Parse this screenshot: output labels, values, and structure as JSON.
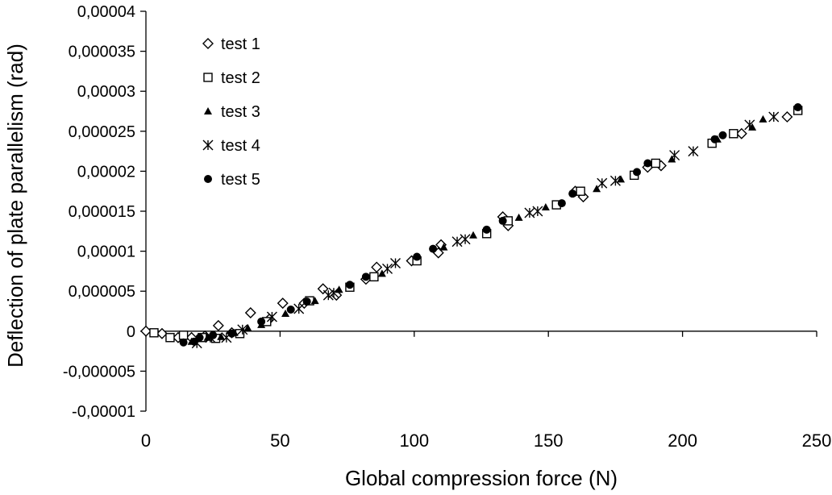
{
  "chart_data": {
    "type": "scatter",
    "title": "",
    "xlabel": "Global compression force (N)",
    "ylabel": "Deflection of plate parallelism (rad)",
    "xlim": [
      0,
      250
    ],
    "ylim": [
      -1e-05,
      4e-05
    ],
    "x_ticks": [
      0,
      50,
      100,
      150,
      200,
      250
    ],
    "x_tick_labels": [
      "0",
      "50",
      "100",
      "150",
      "200",
      "250"
    ],
    "y_ticks": [
      -1e-05,
      -5e-06,
      0,
      5e-06,
      1e-05,
      1.5e-05,
      2e-05,
      2.5e-05,
      3e-05,
      3.5e-05,
      4e-05
    ],
    "y_tick_labels": [
      "-0,00001",
      "-0,000005",
      "0",
      "0,000005",
      "0,00001",
      "0,000015",
      "0,00002",
      "0,000025",
      "0,00003",
      "0,000035",
      "0,00004"
    ],
    "grid": false,
    "legend": "top-left",
    "series": [
      {
        "name": "test 1",
        "marker": "diamond-open",
        "points": [
          [
            0,
            0.0
          ],
          [
            6,
            -3e-07
          ],
          [
            12,
            -8e-07
          ],
          [
            17,
            -8e-07
          ],
          [
            22,
            -6e-07
          ],
          [
            27,
            7e-07
          ],
          [
            32,
            -2e-07
          ],
          [
            39,
            2.3e-06
          ],
          [
            46,
            1.5e-06
          ],
          [
            51,
            3.5e-06
          ],
          [
            59,
            3.5e-06
          ],
          [
            66,
            5.3e-06
          ],
          [
            71,
            4.5e-06
          ],
          [
            82,
            6.5e-06
          ],
          [
            86,
            8e-06
          ],
          [
            99,
            8.8e-06
          ],
          [
            109,
            9.8e-06
          ],
          [
            110,
            1.08e-05
          ],
          [
            133,
            1.43e-05
          ],
          [
            135,
            1.32e-05
          ],
          [
            160,
            1.75e-05
          ],
          [
            163,
            1.68e-05
          ],
          [
            187,
            2.05e-05
          ],
          [
            192,
            2.07e-05
          ],
          [
            222,
            2.47e-05
          ],
          [
            239,
            2.68e-05
          ]
        ]
      },
      {
        "name": "test 2",
        "marker": "square-open",
        "points": [
          [
            3,
            -2e-07
          ],
          [
            9,
            -8e-07
          ],
          [
            14,
            -5e-07
          ],
          [
            21,
            -8e-07
          ],
          [
            26,
            -9e-07
          ],
          [
            35,
            -3e-07
          ],
          [
            45,
            1.2e-06
          ],
          [
            61,
            3.8e-06
          ],
          [
            76,
            5.5e-06
          ],
          [
            85,
            6.8e-06
          ],
          [
            101,
            8.8e-06
          ],
          [
            127,
            1.22e-05
          ],
          [
            135,
            1.38e-05
          ],
          [
            153,
            1.58e-05
          ],
          [
            162,
            1.75e-05
          ],
          [
            182,
            1.95e-05
          ],
          [
            190,
            2.1e-05
          ],
          [
            211,
            2.35e-05
          ],
          [
            219,
            2.47e-05
          ],
          [
            243,
            2.76e-05
          ]
        ]
      },
      {
        "name": "test 3",
        "marker": "triangle-filled",
        "points": [
          [
            17,
            -1.3e-06
          ],
          [
            23,
            -8e-07
          ],
          [
            28,
            -7e-07
          ],
          [
            33,
            -2e-07
          ],
          [
            38,
            4e-07
          ],
          [
            43,
            8e-07
          ],
          [
            52,
            2.2e-06
          ],
          [
            63,
            3.8e-06
          ],
          [
            72,
            5.2e-06
          ],
          [
            88,
            7.2e-06
          ],
          [
            111,
            1.05e-05
          ],
          [
            122,
            1.2e-05
          ],
          [
            139,
            1.42e-05
          ],
          [
            149,
            1.55e-05
          ],
          [
            168,
            1.78e-05
          ],
          [
            177,
            1.9e-05
          ],
          [
            196,
            2.15e-05
          ],
          [
            213,
            2.4e-05
          ],
          [
            226,
            2.55e-05
          ],
          [
            230,
            2.65e-05
          ]
        ]
      },
      {
        "name": "test 4",
        "marker": "asterisk",
        "points": [
          [
            19,
            -1.5e-06
          ],
          [
            24,
            -8e-07
          ],
          [
            30,
            -8e-07
          ],
          [
            36,
            2e-07
          ],
          [
            47,
            1.8e-06
          ],
          [
            57,
            2.8e-06
          ],
          [
            68,
            4.5e-06
          ],
          [
            70,
            4.8e-06
          ],
          [
            90,
            7.8e-06
          ],
          [
            93,
            8.5e-06
          ],
          [
            116,
            1.12e-05
          ],
          [
            119,
            1.15e-05
          ],
          [
            143,
            1.48e-05
          ],
          [
            146,
            1.5e-05
          ],
          [
            170,
            1.85e-05
          ],
          [
            175,
            1.88e-05
          ],
          [
            197,
            2.2e-05
          ],
          [
            204,
            2.25e-05
          ],
          [
            225,
            2.58e-05
          ],
          [
            234,
            2.68e-05
          ]
        ]
      },
      {
        "name": "test 5",
        "marker": "circle-filled",
        "points": [
          [
            14,
            -1.4e-06
          ],
          [
            18,
            -1.3e-06
          ],
          [
            20,
            -8e-07
          ],
          [
            25,
            -5e-07
          ],
          [
            32,
            -3e-07
          ],
          [
            43,
            1.2e-06
          ],
          [
            54,
            2.7e-06
          ],
          [
            60,
            3.7e-06
          ],
          [
            76,
            5.8e-06
          ],
          [
            82,
            6.8e-06
          ],
          [
            101,
            9.3e-06
          ],
          [
            107,
            1.03e-05
          ],
          [
            127,
            1.27e-05
          ],
          [
            133,
            1.38e-05
          ],
          [
            155,
            1.6e-05
          ],
          [
            159,
            1.72e-05
          ],
          [
            183,
            1.99e-05
          ],
          [
            187,
            2.1e-05
          ],
          [
            212,
            2.4e-05
          ],
          [
            215,
            2.45e-05
          ],
          [
            243,
            2.8e-05
          ]
        ]
      }
    ]
  }
}
